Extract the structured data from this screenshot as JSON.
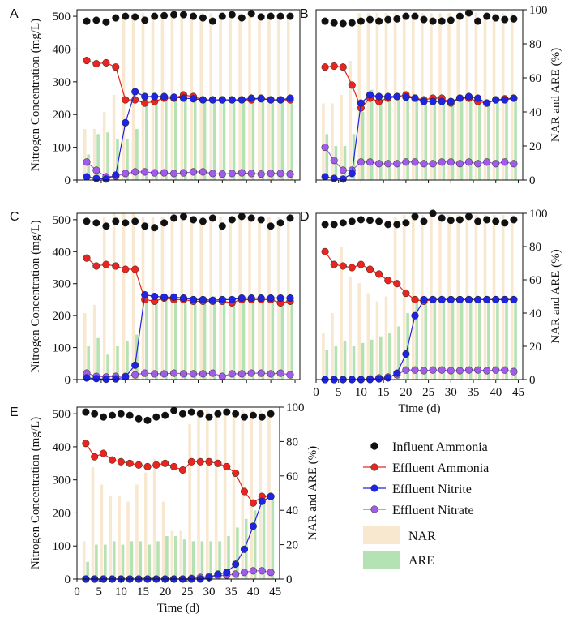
{
  "chart_data": {
    "type": "multi-panel combo (bar + line/scatter)",
    "y_left_label": "Nitrogen Concentration (mg/L)",
    "y_right_label": "NAR and ARE (%)",
    "x_label": "Time (d)",
    "y_left_range": [
      0,
      520
    ],
    "y_left_ticks": [
      "0",
      "100",
      "200",
      "300",
      "400",
      "500"
    ],
    "y_right_range": [
      0,
      100
    ],
    "y_right_ticks": [
      "0",
      "20",
      "40",
      "60",
      "80",
      "100"
    ],
    "x_range": [
      0,
      46
    ],
    "x_ticks": [
      "0",
      "5",
      "10",
      "15",
      "20",
      "25",
      "30",
      "35",
      "40",
      "45"
    ],
    "legend": [
      {
        "key": "influent_ammonia",
        "label": "Influent Ammonia",
        "style": "marker",
        "color": "#111111"
      },
      {
        "key": "effluent_ammonia",
        "label": "Effluent Ammonia",
        "style": "line-marker",
        "color": "#e8261f"
      },
      {
        "key": "effluent_nitrite",
        "label": "Effluent Nitrite",
        "style": "line-marker",
        "color": "#1f24e0"
      },
      {
        "key": "effluent_nitrate",
        "label": "Effluent Nitrate",
        "style": "line-marker",
        "color": "#a05be8"
      },
      {
        "key": "nar",
        "label": "NAR",
        "style": "bar",
        "color": "#f8e8cf"
      },
      {
        "key": "are",
        "label": "ARE",
        "style": "bar",
        "color": "#b5e2b2"
      }
    ],
    "panels": [
      {
        "letter": "A",
        "days": [
          2,
          4,
          6,
          8,
          10,
          12,
          14,
          16,
          18,
          20,
          22,
          24,
          26,
          28,
          30,
          32,
          34,
          36,
          38,
          40,
          42,
          44
        ],
        "influent_ammonia": [
          485,
          488,
          482,
          495,
          500,
          498,
          488,
          500,
          502,
          505,
          505,
          500,
          495,
          485,
          500,
          505,
          495,
          508,
          498,
          500,
          500,
          500
        ],
        "effluent_ammonia": [
          365,
          355,
          358,
          345,
          245,
          245,
          235,
          240,
          250,
          250,
          260,
          255,
          245,
          245,
          245,
          245,
          245,
          245,
          250,
          245,
          245,
          245
        ],
        "effluent_nitrite": [
          10,
          5,
          3,
          15,
          175,
          270,
          255,
          255,
          255,
          253,
          250,
          248,
          245,
          245,
          245,
          245,
          245,
          250,
          248,
          245,
          245,
          250
        ],
        "effluent_nitrate": [
          55,
          30,
          10,
          12,
          20,
          25,
          25,
          22,
          22,
          20,
          22,
          25,
          25,
          20,
          18,
          20,
          22,
          20,
          18,
          20,
          20,
          18
        ],
        "nar": [
          30,
          30,
          40,
          50,
          98,
          98,
          98,
          98,
          98,
          98,
          98,
          98,
          98,
          98,
          98,
          98,
          98,
          98,
          98,
          98,
          98,
          98
        ],
        "are": [
          15,
          27,
          28,
          24,
          24,
          30,
          49,
          49,
          49,
          50,
          49,
          48,
          48,
          49,
          48,
          48,
          48,
          48,
          48,
          48,
          48,
          48
        ]
      },
      {
        "letter": "B",
        "days": [
          2,
          4,
          6,
          8,
          10,
          12,
          14,
          16,
          18,
          20,
          22,
          24,
          26,
          28,
          30,
          32,
          34,
          36,
          38,
          40,
          42,
          44
        ],
        "influent_ammonia": [
          485,
          480,
          478,
          480,
          485,
          490,
          485,
          490,
          492,
          500,
          500,
          490,
          485,
          485,
          488,
          500,
          510,
          485,
          500,
          495,
          490,
          492
        ],
        "effluent_ammonia": [
          345,
          348,
          345,
          290,
          220,
          250,
          240,
          250,
          255,
          260,
          250,
          245,
          250,
          250,
          235,
          250,
          250,
          240,
          235,
          245,
          248,
          250
        ],
        "effluent_nitrite": [
          10,
          5,
          3,
          20,
          235,
          260,
          255,
          255,
          255,
          253,
          250,
          240,
          240,
          240,
          240,
          250,
          255,
          250,
          235,
          245,
          245,
          250
        ],
        "effluent_nitrate": [
          100,
          60,
          30,
          30,
          55,
          55,
          50,
          50,
          50,
          55,
          55,
          50,
          50,
          55,
          55,
          50,
          55,
          50,
          55,
          50,
          55,
          50
        ],
        "nar": [
          45,
          45,
          50,
          70,
          98,
          98,
          98,
          98,
          98,
          98,
          98,
          98,
          98,
          98,
          98,
          98,
          98,
          98,
          98,
          98,
          98,
          98
        ],
        "are": [
          27,
          20,
          20,
          27,
          40,
          53,
          50,
          50,
          50,
          50,
          50,
          48,
          48,
          48,
          48,
          50,
          50,
          48,
          46,
          48,
          48,
          48
        ]
      },
      {
        "letter": "C",
        "days": [
          2,
          4,
          6,
          8,
          10,
          12,
          14,
          16,
          18,
          20,
          22,
          24,
          26,
          28,
          30,
          32,
          34,
          36,
          38,
          40,
          42,
          44
        ],
        "influent_ammonia": [
          495,
          490,
          480,
          495,
          490,
          495,
          480,
          475,
          490,
          505,
          510,
          500,
          495,
          505,
          480,
          500,
          510,
          505,
          500,
          480,
          490,
          505
        ],
        "effluent_ammonia": [
          380,
          355,
          360,
          355,
          345,
          345,
          250,
          245,
          255,
          250,
          250,
          245,
          245,
          245,
          245,
          240,
          250,
          250,
          250,
          250,
          240,
          245
        ],
        "effluent_nitrite": [
          5,
          3,
          1,
          2,
          8,
          45,
          265,
          260,
          258,
          258,
          255,
          250,
          250,
          248,
          250,
          250,
          255,
          255,
          255,
          255,
          255,
          255
        ],
        "effluent_nitrate": [
          20,
          10,
          8,
          10,
          10,
          15,
          20,
          18,
          18,
          20,
          18,
          18,
          18,
          20,
          10,
          18,
          18,
          20,
          20,
          18,
          20,
          15
        ],
        "nar": [
          40,
          45,
          98,
          100,
          100,
          100,
          98,
          98,
          98,
          98,
          98,
          98,
          98,
          98,
          98,
          98,
          98,
          98,
          98,
          98,
          98,
          98
        ],
        "are": [
          20,
          25,
          15,
          20,
          23,
          27,
          50,
          50,
          50,
          50,
          50,
          50,
          50,
          50,
          50,
          50,
          50,
          50,
          50,
          50,
          50,
          50
        ]
      },
      {
        "letter": "D",
        "days": [
          2,
          4,
          6,
          8,
          10,
          12,
          14,
          16,
          18,
          20,
          22,
          24,
          26,
          28,
          30,
          32,
          34,
          36,
          38,
          40,
          42,
          44
        ],
        "influent_ammonia": [
          485,
          485,
          490,
          495,
          500,
          498,
          495,
          485,
          485,
          490,
          510,
          495,
          520,
          505,
          498,
          500,
          510,
          495,
          500,
          495,
          490,
          500
        ],
        "effluent_ammonia": [
          400,
          360,
          355,
          350,
          360,
          345,
          330,
          310,
          300,
          270,
          250,
          245,
          250,
          250,
          250,
          250,
          250,
          250,
          250,
          250,
          250,
          250
        ],
        "effluent_nitrite": [
          0,
          0,
          0,
          0,
          0,
          0,
          2,
          5,
          20,
          80,
          200,
          250,
          250,
          250,
          250,
          250,
          250,
          250,
          250,
          250,
          250,
          250
        ],
        "effluent_nitrate": [
          0,
          0,
          0,
          0,
          0,
          2,
          5,
          8,
          15,
          30,
          30,
          28,
          30,
          30,
          28,
          28,
          30,
          30,
          28,
          30,
          30,
          25
        ],
        "nar": [
          28,
          40,
          80,
          62,
          58,
          52,
          47,
          50,
          98,
          99,
          99,
          99,
          99,
          99,
          99,
          99,
          99,
          99,
          99,
          99,
          99,
          99
        ],
        "are": [
          18,
          20,
          23,
          20,
          22,
          24,
          26,
          28,
          32,
          40,
          50,
          50,
          50,
          50,
          50,
          50,
          50,
          50,
          50,
          50,
          50,
          50
        ]
      },
      {
        "letter": "E",
        "days": [
          2,
          4,
          6,
          8,
          10,
          12,
          14,
          16,
          18,
          20,
          22,
          24,
          26,
          28,
          30,
          32,
          34,
          36,
          38,
          40,
          42,
          44
        ],
        "influent_ammonia": [
          505,
          500,
          490,
          495,
          500,
          495,
          485,
          480,
          490,
          495,
          510,
          500,
          505,
          500,
          490,
          500,
          505,
          500,
          490,
          495,
          490,
          500
        ],
        "effluent_ammonia": [
          410,
          370,
          380,
          360,
          355,
          350,
          345,
          340,
          345,
          350,
          340,
          330,
          355,
          355,
          355,
          350,
          340,
          320,
          265,
          230,
          250,
          250
        ],
        "effluent_nitrite": [
          0,
          0,
          0,
          0,
          0,
          0,
          0,
          0,
          0,
          0,
          0,
          0,
          0,
          0,
          5,
          15,
          20,
          45,
          90,
          160,
          235,
          250
        ],
        "effluent_nitrate": [
          0,
          0,
          0,
          0,
          0,
          0,
          0,
          0,
          0,
          0,
          0,
          0,
          2,
          5,
          8,
          10,
          12,
          15,
          20,
          25,
          25,
          20
        ],
        "nar": [
          22,
          65,
          55,
          48,
          48,
          45,
          55,
          62,
          70,
          45,
          28,
          28,
          90,
          98,
          98,
          98,
          98,
          98,
          98,
          98,
          98,
          98
        ],
        "are": [
          10,
          20,
          20,
          22,
          20,
          22,
          22,
          20,
          22,
          25,
          25,
          23,
          22,
          22,
          22,
          22,
          25,
          30,
          35,
          40,
          45,
          48
        ]
      }
    ]
  }
}
